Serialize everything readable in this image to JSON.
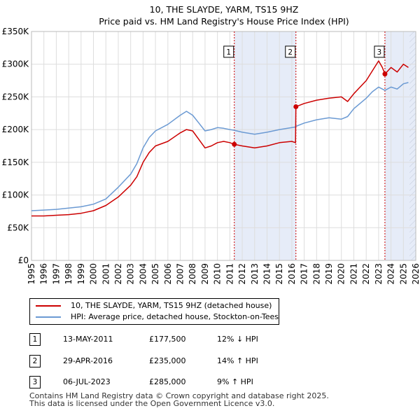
{
  "chart_data": {
    "type": "line",
    "title": "10, THE SLAYDE, YARM, TS15 9HZ",
    "subtitle": "Price paid vs. HM Land Registry's House Price Index (HPI)",
    "x_range": [
      1995,
      2026
    ],
    "ylim": [
      0,
      350000
    ],
    "y_ticks": [
      0,
      50000,
      100000,
      150000,
      200000,
      250000,
      300000,
      350000
    ],
    "y_tick_labels": [
      "£0",
      "£50K",
      "£100K",
      "£150K",
      "£200K",
      "£250K",
      "£300K",
      "£350K"
    ],
    "x_ticks": [
      "1995",
      "1996",
      "1997",
      "1998",
      "1999",
      "2000",
      "2001",
      "2002",
      "2003",
      "2004",
      "2005",
      "2006",
      "2007",
      "2008",
      "2009",
      "2010",
      "2011",
      "2012",
      "2013",
      "2014",
      "2015",
      "2016",
      "2017",
      "2018",
      "2019",
      "2020",
      "2021",
      "2022",
      "2023",
      "2024",
      "2025",
      "2026"
    ],
    "grid": true,
    "shaded_periods": [
      [
        2011.36,
        2016.33
      ],
      [
        2023.51,
        2026
      ]
    ],
    "colors": {
      "property": "#cc0000",
      "hpi": "#6b9ad3",
      "shade": "#e6ecf8",
      "marker_line": "#cc0000"
    },
    "series": [
      {
        "name": "10, THE SLAYDE, YARM, TS15 9HZ (detached house)",
        "color": "#cc0000",
        "x": [
          1995,
          1996,
          1997,
          1998,
          1999,
          2000,
          2001,
          2002,
          2003,
          2003.5,
          2004,
          2004.5,
          2005,
          2006,
          2007,
          2007.5,
          2008,
          2008.5,
          2009,
          2009.5,
          2010,
          2010.5,
          2011,
          2011.36,
          2012,
          2013,
          2014,
          2015,
          2016,
          2016.3,
          2016.33,
          2017,
          2018,
          2019,
          2020,
          2020.5,
          2021,
          2022,
          2022.5,
          2023,
          2023.3,
          2023.51,
          2024,
          2024.5,
          2025,
          2025.4
        ],
        "y": [
          68000,
          68000,
          69000,
          70000,
          72000,
          76000,
          84000,
          97000,
          115000,
          128000,
          150000,
          165000,
          175000,
          182000,
          195000,
          200000,
          198000,
          185000,
          172000,
          175000,
          180000,
          182000,
          180000,
          177500,
          175000,
          172000,
          175000,
          180000,
          182000,
          180000,
          235000,
          240000,
          245000,
          248000,
          250000,
          243000,
          255000,
          275000,
          290000,
          305000,
          295000,
          285000,
          295000,
          288000,
          300000,
          295000
        ]
      },
      {
        "name": "HPI: Average price, detached house, Stockton-on-Tees",
        "color": "#6b9ad3",
        "x": [
          1995,
          1996,
          1997,
          1998,
          1999,
          2000,
          2001,
          2002,
          2003,
          2003.5,
          2004,
          2004.5,
          2005,
          2006,
          2007,
          2007.5,
          2008,
          2008.5,
          2009,
          2009.5,
          2010,
          2010.5,
          2011,
          2011.36,
          2012,
          2013,
          2014,
          2015,
          2016,
          2016.3,
          2016.33,
          2017,
          2018,
          2019,
          2020,
          2020.5,
          2021,
          2022,
          2022.5,
          2023,
          2023.3,
          2023.51,
          2024,
          2024.5,
          2025,
          2025.4
        ],
        "y": [
          76000,
          77000,
          78000,
          80000,
          82000,
          86000,
          94000,
          112000,
          132000,
          148000,
          172000,
          188000,
          198000,
          208000,
          222000,
          228000,
          222000,
          210000,
          198000,
          200000,
          203000,
          202000,
          200000,
          199000,
          196000,
          193000,
          196000,
          200000,
          203000,
          204000,
          205000,
          210000,
          215000,
          218000,
          216000,
          220000,
          232000,
          248000,
          258000,
          265000,
          262000,
          260000,
          265000,
          262000,
          270000,
          272000
        ]
      }
    ],
    "transactions": [
      {
        "label": "1",
        "x": 2011.36,
        "price": 177500,
        "date": "13-MAY-2011",
        "price_label": "£177,500",
        "hpi_label": "12% ↓ HPI"
      },
      {
        "label": "2",
        "x": 2016.33,
        "price": 235000,
        "date": "29-APR-2016",
        "price_label": "£235,000",
        "hpi_label": "14% ↑ HPI"
      },
      {
        "label": "3",
        "x": 2023.51,
        "price": 285000,
        "date": "06-JUL-2023",
        "price_label": "£285,000",
        "hpi_label": "9% ↑ HPI"
      }
    ],
    "marker_box_price": 318000
  },
  "legend": {
    "property": "10, THE SLAYDE, YARM, TS15 9HZ (detached house)",
    "hpi": "HPI: Average price, detached house, Stockton-on-Tees"
  },
  "footer": {
    "line1": "Contains HM Land Registry data © Crown copyright and database right 2025.",
    "line2": "This data is licensed under the Open Government Licence v3.0."
  }
}
